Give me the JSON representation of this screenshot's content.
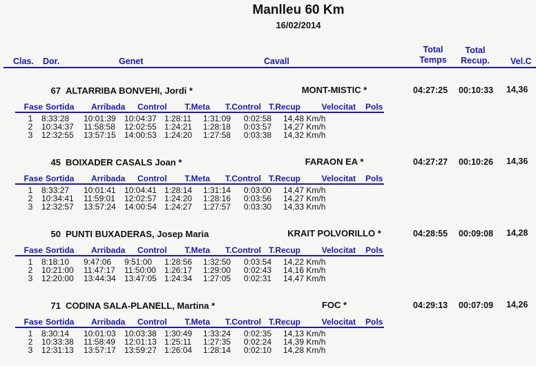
{
  "header": {
    "title": "Manlleu 60 Km",
    "date": "16/02/2014",
    "columns": {
      "clas": "Clas.",
      "dor": "Dor.",
      "genet": "Genet",
      "cavall": "Cavall",
      "total_temps_1": "Total",
      "total_temps_2": "Temps",
      "total_recup_1": "Total",
      "total_recup_2": "Recup.",
      "vel": "Vel.C"
    }
  },
  "sub_columns": [
    "Fase",
    "Sortida",
    "Arribada",
    "Control",
    "T.Meta",
    "T.Control",
    "T.Recup",
    "Velocitat",
    "Pols"
  ],
  "colors": {
    "accent": "#1a1aa8",
    "background": "#f6f6f4"
  },
  "riders": [
    {
      "dorsal": "67",
      "genet": "ALTARRIBA BONVEHI, Jordi *",
      "cavall": "MONT-MISTIC *",
      "total_temps": "04:27:25",
      "total_recup": "00:10:33",
      "vel": "14,36",
      "fases": [
        [
          "1",
          "8:33:28",
          "10:01:39",
          "10:04:37",
          "1:28:11",
          "1:31:09",
          "0:02:58",
          "14,48 Km/h",
          ""
        ],
        [
          "2",
          "10:34:37",
          "11:58:58",
          "12:02:55",
          "1:24:21",
          "1:28:18",
          "0:03:57",
          "14,27 Km/h",
          ""
        ],
        [
          "3",
          "12:32:55",
          "13:57:15",
          "14:00:53",
          "1:24:20",
          "1:27:58",
          "0:03:38",
          "14,32 Km/h",
          ""
        ]
      ]
    },
    {
      "dorsal": "45",
      "genet": "BOIXADER CASALS Joan *",
      "cavall": "FARAON EA *",
      "total_temps": "04:27:27",
      "total_recup": "00:10:26",
      "vel": "14,36",
      "fases": [
        [
          "1",
          "8:33:27",
          "10:01:41",
          "10:04:41",
          "1:28:14",
          "1:31:14",
          "0:03:00",
          "14,47 Km/h",
          ""
        ],
        [
          "2",
          "10:34:41",
          "11:59:01",
          "12:02:57",
          "1:24:20",
          "1:28:16",
          "0:03:56",
          "14,27 Km/h",
          ""
        ],
        [
          "3",
          "12:32:57",
          "13:57:24",
          "14:00:54",
          "1:24:27",
          "1:27:57",
          "0:03:30",
          "14,33 Km/h",
          ""
        ]
      ]
    },
    {
      "dorsal": "50",
      "genet": "PUNTI BUXADERAS, Josep Maria",
      "cavall": "KRAIT POLVORILLO *",
      "total_temps": "04:28:55",
      "total_recup": "00:09:08",
      "vel": "14,28",
      "fases": [
        [
          "1",
          "8:18:10",
          "9:47:06",
          "9:51:00",
          "1:28:56",
          "1:32:50",
          "0:03:54",
          "14,22 Km/h",
          ""
        ],
        [
          "2",
          "10:21:00",
          "11:47:17",
          "11:50:00",
          "1:26:17",
          "1:29:00",
          "0:02:43",
          "14,16 Km/h",
          ""
        ],
        [
          "3",
          "12:20:00",
          "13:44:34",
          "13:47:05",
          "1:24:34",
          "1:27:05",
          "0:02:31",
          "14,47 Km/h",
          ""
        ]
      ]
    },
    {
      "dorsal": "71",
      "genet": "CODINA SALA-PLANELL, Martina *",
      "cavall": "FOC *",
      "total_temps": "04:29:13",
      "total_recup": "00:07:09",
      "vel": "14,26",
      "fases": [
        [
          "1",
          "8:30:14",
          "10:01:03",
          "10:03:38",
          "1:30:49",
          "1:33:24",
          "0:02:35",
          "14,13 Km/h",
          ""
        ],
        [
          "2",
          "10:33:38",
          "11:58:49",
          "12:01:13",
          "1:25:11",
          "1:27:35",
          "0:02:24",
          "14,39 Km/h",
          ""
        ],
        [
          "3",
          "12:31:13",
          "13:57:17",
          "13:59:27",
          "1:26:04",
          "1:28:14",
          "0:02:10",
          "14,28 Km/h",
          ""
        ]
      ]
    }
  ]
}
